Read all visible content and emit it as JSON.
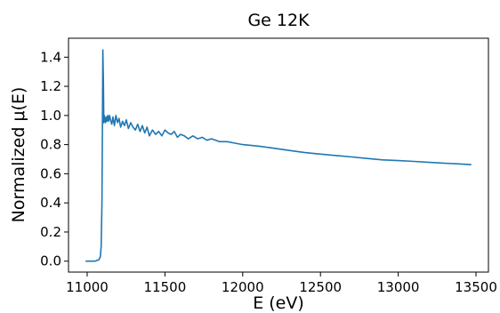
{
  "chart_data": {
    "type": "line",
    "title": "Ge 12K",
    "xlabel": "E (eV)",
    "ylabel": "Normalized μ(E)",
    "xlim": [
      10880,
      13580
    ],
    "ylim": [
      -0.075,
      1.53
    ],
    "xticks": [
      11000,
      11500,
      12000,
      12500,
      13000,
      13500
    ],
    "yticks": [
      0.0,
      0.2,
      0.4,
      0.6,
      0.8,
      1.0,
      1.2,
      1.4
    ],
    "xtick_labels": [
      "11000",
      "11500",
      "12000",
      "12500",
      "13000",
      "13500"
    ],
    "ytick_labels": [
      "0.0",
      "0.2",
      "0.4",
      "0.6",
      "0.8",
      "1.0",
      "1.2",
      "1.4"
    ],
    "grid": false,
    "line_color": "#1f77b4",
    "series": [
      {
        "x": [
          10990,
          11050,
          11075,
          11085,
          11090,
          11095,
          11098,
          11101,
          11104,
          11107,
          11110,
          11114,
          11118,
          11122,
          11127,
          11132,
          11138,
          11144,
          11150,
          11158,
          11166,
          11175,
          11185,
          11195,
          11205,
          11215,
          11228,
          11240,
          11252,
          11265,
          11280,
          11295,
          11310,
          11325,
          11340,
          11355,
          11370,
          11385,
          11400,
          11420,
          11440,
          11460,
          11480,
          11500,
          11520,
          11540,
          11560,
          11580,
          11600,
          11625,
          11650,
          11680,
          11710,
          11740,
          11770,
          11800,
          11850,
          11900,
          11950,
          12000,
          12100,
          12200,
          12300,
          12400,
          12500,
          12600,
          12700,
          12800,
          12900,
          13000,
          13100,
          13200,
          13300,
          13400,
          13470
        ],
        "y": [
          0.0,
          0.0,
          0.01,
          0.03,
          0.1,
          0.4,
          0.9,
          1.45,
          1.25,
          0.95,
          1.0,
          0.97,
          0.95,
          0.99,
          0.96,
          1.0,
          0.96,
          1.0,
          0.97,
          0.94,
          0.99,
          0.93,
          1.0,
          0.95,
          0.98,
          0.92,
          0.96,
          0.93,
          0.97,
          0.91,
          0.95,
          0.92,
          0.9,
          0.94,
          0.89,
          0.93,
          0.88,
          0.92,
          0.86,
          0.9,
          0.87,
          0.89,
          0.86,
          0.9,
          0.88,
          0.87,
          0.89,
          0.85,
          0.87,
          0.86,
          0.84,
          0.86,
          0.84,
          0.85,
          0.83,
          0.84,
          0.82,
          0.82,
          0.81,
          0.8,
          0.79,
          0.775,
          0.76,
          0.745,
          0.735,
          0.725,
          0.715,
          0.705,
          0.695,
          0.69,
          0.685,
          0.678,
          0.672,
          0.667,
          0.662
        ]
      }
    ]
  }
}
